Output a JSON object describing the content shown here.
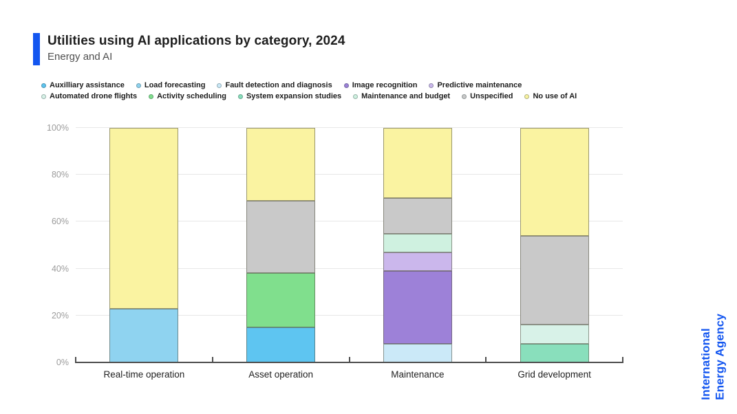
{
  "header": {
    "title": "Utilities using AI applications by category, 2024",
    "subtitle": "Energy and AI"
  },
  "brand": {
    "line1": "International",
    "line2": "Energy Agency",
    "accent_color": "#1356f0"
  },
  "legend": {
    "rows": [
      [
        "Auxilliary assistance",
        "Load forecasting",
        "Fault detection and diagnosis",
        "Image recognition",
        "Predictive maintenance"
      ],
      [
        "Automated drone flights",
        "Activity scheduling",
        "System expansion studies",
        "Maintenance and budget",
        "Unspecified",
        "No use of AI"
      ]
    ]
  },
  "chart_data": {
    "type": "bar",
    "stacked": true,
    "title": "Utilities using AI applications by category, 2024",
    "categories": [
      "Real-time operation",
      "Asset operation",
      "Maintenance",
      "Grid development"
    ],
    "series": [
      {
        "name": "Load forecasting",
        "color": "#8fd3f0",
        "values": [
          23,
          0,
          0,
          0
        ]
      },
      {
        "name": "Auxilliary assistance",
        "color": "#5ec5f1",
        "values": [
          0,
          15,
          0,
          0
        ]
      },
      {
        "name": "Activity scheduling",
        "color": "#80df8d",
        "values": [
          0,
          23,
          0,
          0
        ]
      },
      {
        "name": "Fault detection and diagnosis",
        "color": "#cbe9f8",
        "values": [
          0,
          0,
          8,
          0
        ]
      },
      {
        "name": "Image recognition",
        "color": "#9d81d8",
        "values": [
          0,
          0,
          31,
          0
        ]
      },
      {
        "name": "Predictive maintenance",
        "color": "#cbb7ec",
        "values": [
          0,
          0,
          8,
          0
        ]
      },
      {
        "name": "Maintenance and budget",
        "color": "#cff1e0",
        "values": [
          0,
          0,
          8,
          0
        ]
      },
      {
        "name": "System expansion studies",
        "color": "#89dfbc",
        "values": [
          0,
          0,
          0,
          8
        ]
      },
      {
        "name": "Automated drone flights",
        "color": "#d8f2e8",
        "values": [
          0,
          0,
          0,
          8
        ]
      },
      {
        "name": "Unspecified",
        "color": "#c9c9c9",
        "values": [
          0,
          31,
          15,
          38
        ]
      },
      {
        "name": "No use of AI",
        "color": "#faf3a1",
        "values": [
          77,
          31,
          30,
          46
        ]
      }
    ],
    "xlabel": "",
    "ylabel": "",
    "ylim": [
      0,
      100
    ],
    "yticks": [
      "0%",
      "20%",
      "40%",
      "60%",
      "80%",
      "100%"
    ],
    "grid": true,
    "legend_position": "top"
  }
}
